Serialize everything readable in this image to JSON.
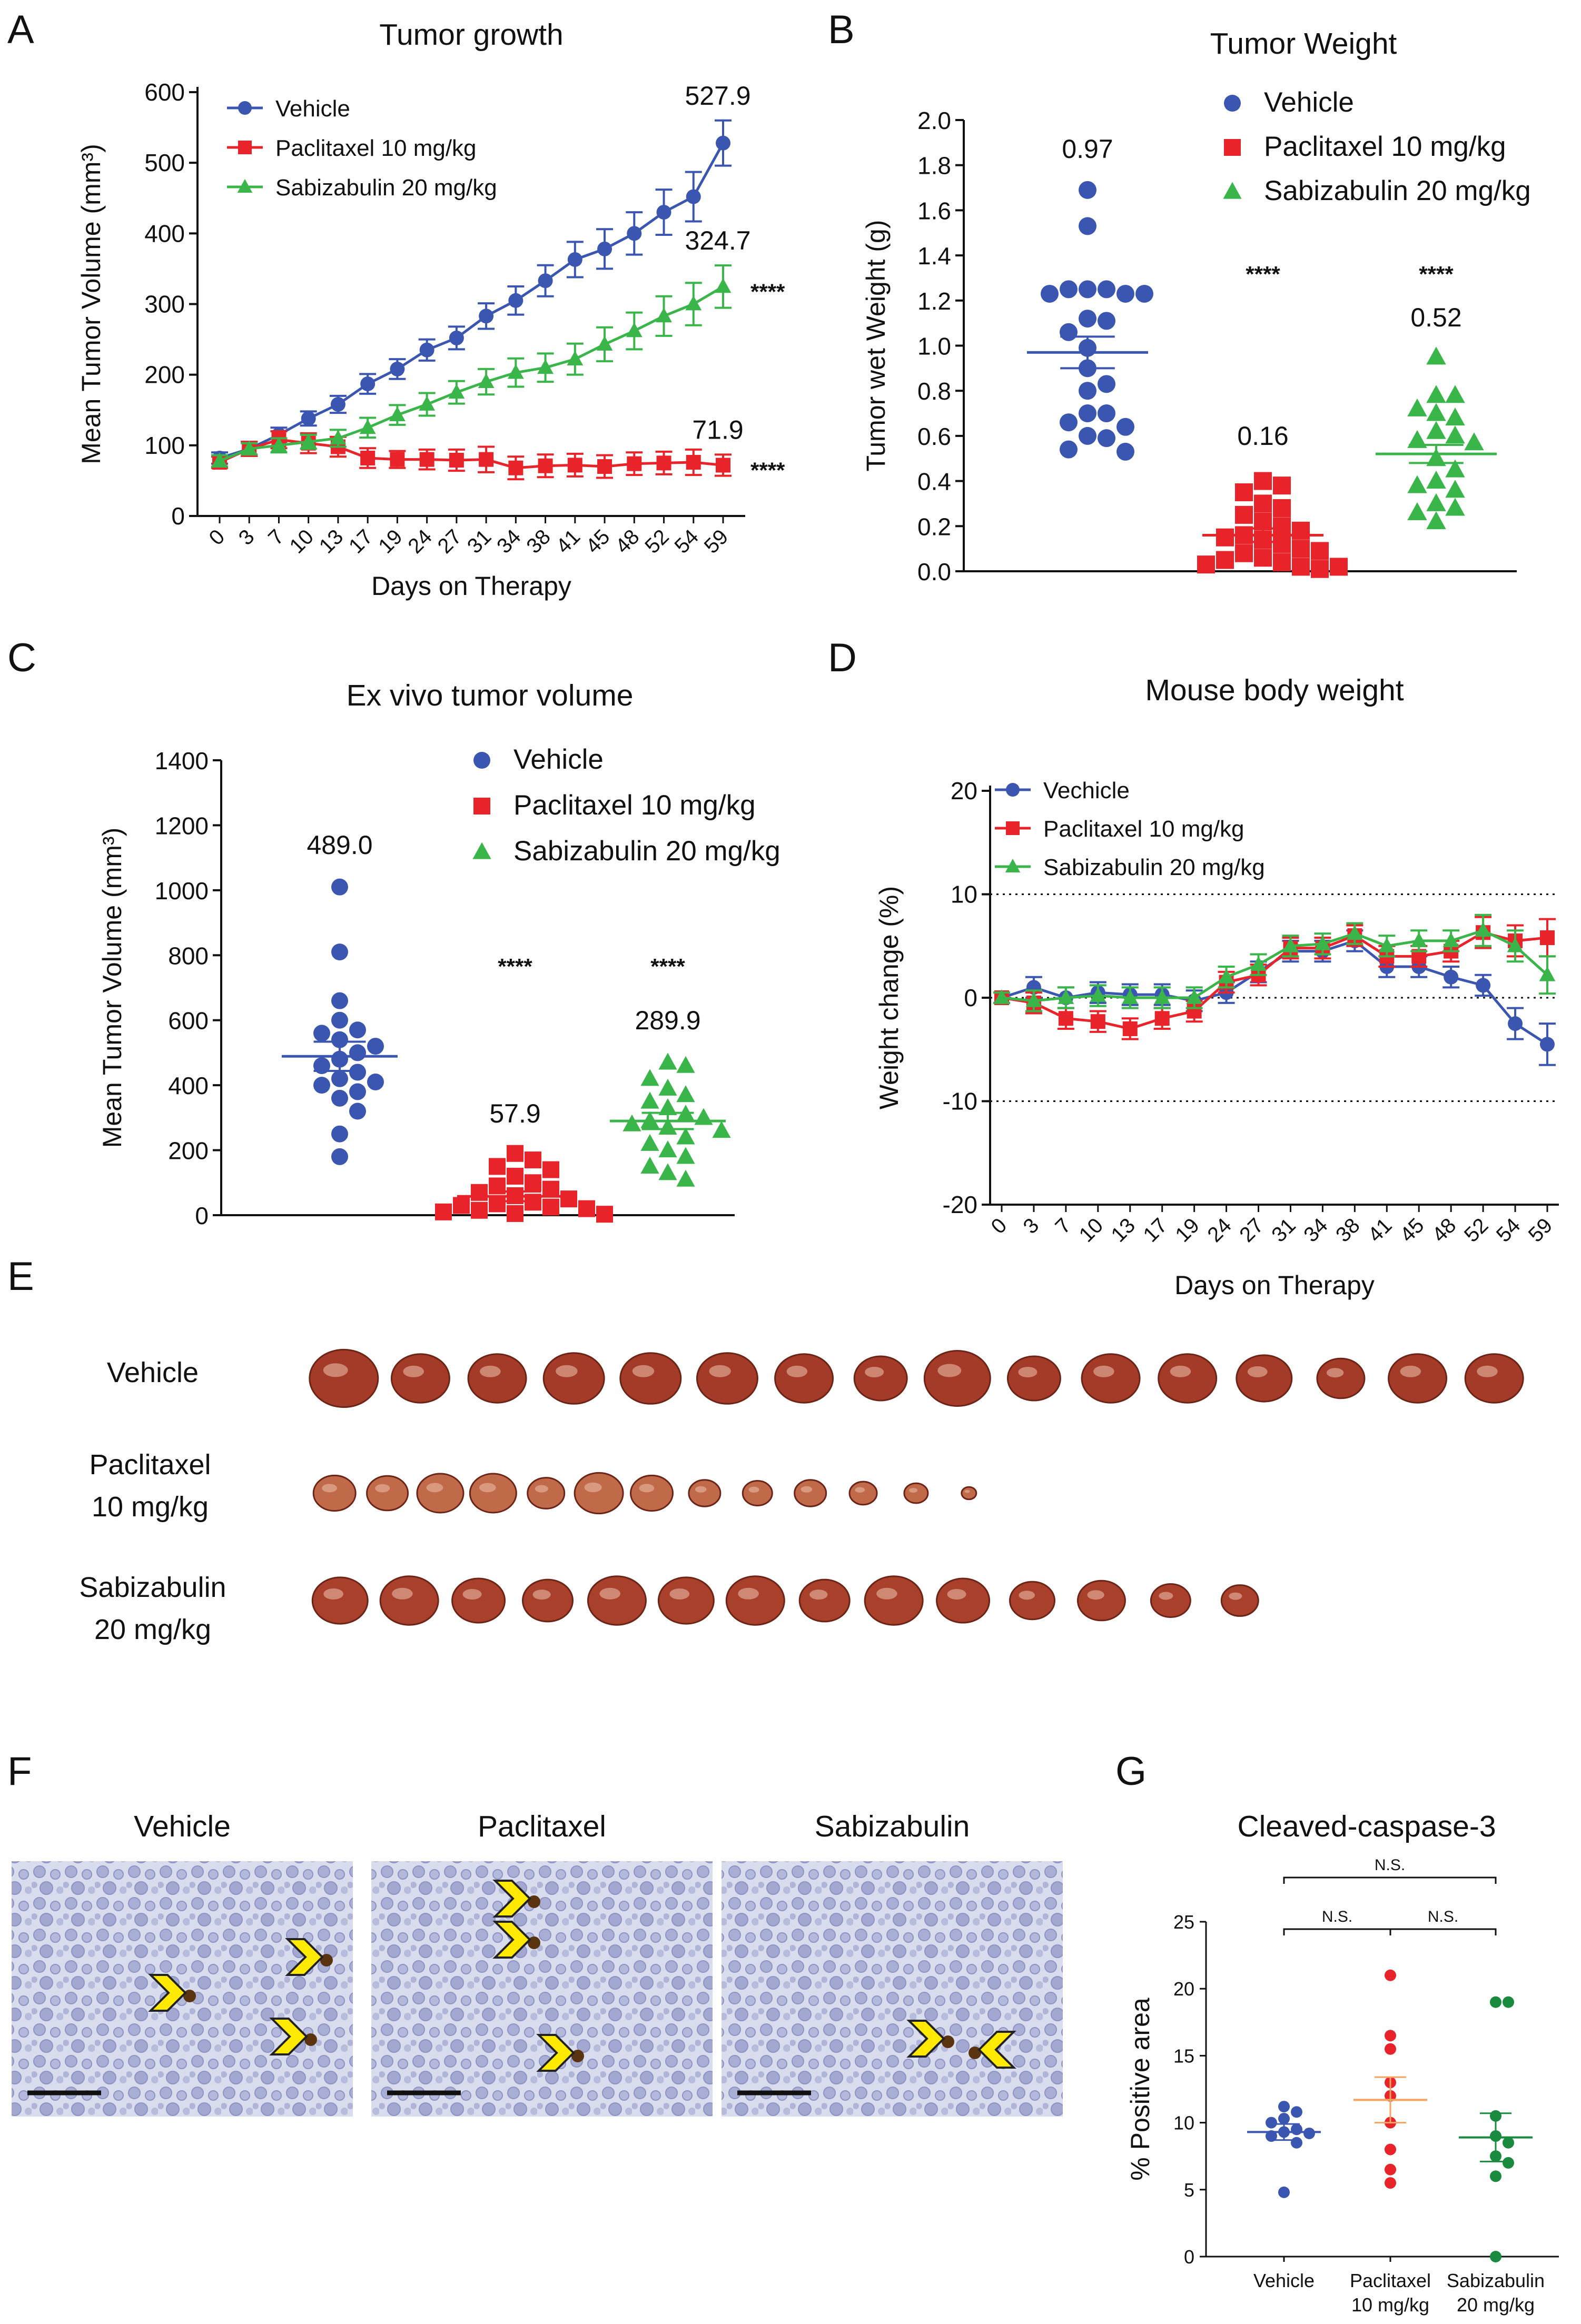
{
  "colors": {
    "vehicle": "#3a56b0",
    "paclitaxel": "#e8242a",
    "sabizabulin": "#3ab54a",
    "g_paclitaxel_mean": "#f4a460",
    "g_sabizabulin": "#1a8a3e"
  },
  "panels": {
    "A": {
      "letter": "A"
    },
    "B": {
      "letter": "B"
    },
    "C": {
      "letter": "C"
    },
    "D": {
      "letter": "D"
    },
    "E": {
      "letter": "E",
      "rows": [
        {
          "label_lines": [
            "Vehicle"
          ],
          "count": 16,
          "color": "#a43a28"
        },
        {
          "label_lines": [
            "Paclitaxel",
            "10 mg/kg"
          ],
          "count": 13,
          "color": "#c06a4a"
        },
        {
          "label_lines": [
            "Sabizabulin",
            "20 mg/kg"
          ],
          "count": 14,
          "color": "#a8402c"
        }
      ]
    },
    "F": {
      "letter": "F",
      "images": [
        {
          "title": "Vehicle",
          "arrows": 3
        },
        {
          "title": "Paclitaxel",
          "arrows": 3
        },
        {
          "title": "Sabizabulin",
          "arrows": 2
        }
      ]
    },
    "G": {
      "letter": "G"
    }
  },
  "chart_data": [
    {
      "id": "A",
      "type": "line",
      "title": "Tumor growth",
      "xlabel": "Days on Therapy",
      "ylabel": "Mean Tumor Volume (mm³)",
      "ylim": [
        0,
        600
      ],
      "yticks": [
        0,
        100,
        200,
        300,
        400,
        500,
        600
      ],
      "categories": [
        "0",
        "3",
        "7",
        "10",
        "13",
        "17",
        "19",
        "24",
        "27",
        "31",
        "34",
        "38",
        "41",
        "45",
        "48",
        "52",
        "54",
        "59"
      ],
      "series": [
        {
          "name": "Vehicle",
          "values": [
            82,
            95,
            115,
            138,
            158,
            187,
            208,
            235,
            252,
            283,
            305,
            333,
            363,
            378,
            400,
            430,
            452,
            527.9
          ],
          "err": [
            8,
            10,
            10,
            10,
            12,
            14,
            14,
            15,
            16,
            18,
            20,
            22,
            25,
            28,
            30,
            32,
            35,
            32
          ],
          "end_label": "527.9",
          "sig": ""
        },
        {
          "name": "Paclitaxel 10 mg/kg",
          "values": [
            76,
            95,
            108,
            103,
            98,
            82,
            80,
            80,
            79,
            80,
            68,
            71,
            72,
            70,
            74,
            75,
            76,
            71.9
          ],
          "err": [
            8,
            10,
            12,
            14,
            14,
            14,
            12,
            14,
            15,
            18,
            16,
            16,
            16,
            16,
            16,
            16,
            18,
            15
          ],
          "end_label": "71.9",
          "sig": "****"
        },
        {
          "name": "Sabizabulin 20 mg/kg",
          "values": [
            78,
            95,
            100,
            105,
            110,
            125,
            143,
            158,
            175,
            190,
            203,
            210,
            222,
            243,
            262,
            283,
            300,
            324.7
          ],
          "err": [
            8,
            8,
            10,
            10,
            12,
            14,
            14,
            16,
            16,
            18,
            20,
            20,
            22,
            24,
            26,
            28,
            30,
            30
          ],
          "end_label": "324.7",
          "sig": "****"
        }
      ]
    },
    {
      "id": "B",
      "type": "scatter",
      "title": "Tumor Weight",
      "ylabel": "Tumor wet Weight (g)",
      "ylim": [
        0,
        2.0
      ],
      "yticks": [
        "0.0",
        "0.2",
        "0.4",
        "0.6",
        "0.8",
        "1.0",
        "1.2",
        "1.4",
        "1.6",
        "1.8",
        "2.0"
      ],
      "groups": [
        {
          "name": "Vehicle",
          "mean": 0.97,
          "sem": 0.07,
          "label": "0.97",
          "sig": "",
          "values": [
            1.69,
            1.53,
            1.25,
            1.25,
            1.25,
            1.23,
            1.23,
            1.23,
            1.11,
            1.12,
            1.06,
            0.99,
            0.9,
            0.83,
            0.8,
            0.7,
            0.7,
            0.66,
            0.64,
            0.59,
            0.6,
            0.53,
            0.54
          ]
        },
        {
          "name": "Paclitaxel 10 mg/kg",
          "mean": 0.16,
          "sem": 0.03,
          "label": "0.16",
          "sig": "****",
          "values": [
            0.4,
            0.38,
            0.35,
            0.3,
            0.28,
            0.25,
            0.22,
            0.2,
            0.18,
            0.16,
            0.15,
            0.14,
            0.12,
            0.1,
            0.09,
            0.08,
            0.06,
            0.05,
            0.04,
            0.03,
            0.02,
            0.02,
            0.01
          ]
        },
        {
          "name": "Sabizabulin 20 mg/kg",
          "mean": 0.52,
          "sem": 0.04,
          "label": "0.52",
          "sig": "****",
          "values": [
            0.95,
            0.78,
            0.78,
            0.72,
            0.7,
            0.68,
            0.62,
            0.6,
            0.58,
            0.57,
            0.5,
            0.45,
            0.4,
            0.38,
            0.36,
            0.3,
            0.28,
            0.26,
            0.22
          ]
        }
      ]
    },
    {
      "id": "C",
      "type": "scatter",
      "title": "Ex vivo tumor volume",
      "ylabel": "Mean Tumor Volume (mm³)",
      "ylim": [
        0,
        1400
      ],
      "yticks": [
        "0",
        "200",
        "400",
        "600",
        "800",
        "1000",
        "1200",
        "1400"
      ],
      "groups": [
        {
          "name": "Vehicle",
          "mean": 489.0,
          "sem": 45,
          "label": "489.0",
          "sig": "",
          "values": [
            1010,
            810,
            660,
            600,
            570,
            540,
            520,
            500,
            480,
            460,
            440,
            420,
            400,
            380,
            360,
            320,
            250,
            180,
            560,
            410
          ]
        },
        {
          "name": "Paclitaxel 10 mg/kg",
          "mean": 57.9,
          "sem": 15,
          "label": "57.9",
          "sig": "****",
          "values": [
            190,
            170,
            150,
            140,
            120,
            100,
            90,
            80,
            70,
            60,
            50,
            40,
            35,
            30,
            25,
            20,
            15,
            10,
            5,
            3
          ]
        },
        {
          "name": "Sabizabulin 20 mg/kg",
          "mean": 289.9,
          "sem": 25,
          "label": "289.9",
          "sig": "****",
          "values": [
            470,
            460,
            420,
            390,
            370,
            350,
            330,
            310,
            300,
            280,
            270,
            260,
            240,
            220,
            200,
            180,
            150,
            130,
            110,
            290
          ]
        }
      ]
    },
    {
      "id": "D",
      "type": "line",
      "title": "Mouse body weight",
      "xlabel": "Days on Therapy",
      "ylabel": "Weight change (%)",
      "ylim": [
        -20,
        20
      ],
      "yticks": [
        "-20",
        "-10",
        "0",
        "10",
        "20"
      ],
      "reference_lines": [
        -10,
        0,
        10
      ],
      "categories": [
        "0",
        "3",
        "7",
        "10",
        "13",
        "17",
        "19",
        "24",
        "27",
        "31",
        "34",
        "38",
        "41",
        "45",
        "48",
        "52",
        "54",
        "59"
      ],
      "series": [
        {
          "name": "Vechicle",
          "values": [
            0,
            1,
            0,
            0.5,
            0.3,
            0.3,
            -0.3,
            0.5,
            2.5,
            4.5,
            4.5,
            5.5,
            3,
            3,
            2,
            1.2,
            -2.5,
            -4.5
          ],
          "err": [
            0.5,
            1,
            1,
            1,
            1,
            1,
            1,
            1,
            1,
            1,
            1,
            1,
            1,
            1,
            1,
            1,
            1.5,
            2
          ]
        },
        {
          "name": "Paclitaxel 10 mg/kg",
          "values": [
            0,
            -0.5,
            -2,
            -2.3,
            -3,
            -2,
            -1.3,
            1.5,
            2.2,
            4.8,
            4.8,
            6,
            4,
            4,
            4.5,
            6.3,
            5.5,
            5.8
          ],
          "err": [
            0.5,
            1,
            1,
            1,
            1,
            1,
            1,
            1,
            1,
            1,
            1,
            1,
            1,
            1,
            1,
            1.5,
            1.5,
            1.8
          ]
        },
        {
          "name": "Sabizabulin 20 mg/kg",
          "values": [
            0,
            -0.3,
            0,
            0.2,
            0,
            0,
            0,
            2,
            3.2,
            5,
            5.2,
            6.2,
            5,
            5.5,
            5.5,
            6.5,
            5,
            2.2
          ],
          "err": [
            0.5,
            1,
            1,
            1,
            1,
            1,
            1,
            1,
            1,
            1,
            1,
            1,
            1,
            1,
            1,
            1.5,
            1.5,
            1.8
          ]
        }
      ]
    },
    {
      "id": "G",
      "type": "scatter",
      "title": "Cleaved-caspase-3",
      "ylabel": "% Positive area",
      "ylim": [
        0,
        25
      ],
      "yticks": [
        "0",
        "5",
        "10",
        "15",
        "20",
        "25"
      ],
      "categories": [
        [
          "Vehicle"
        ],
        [
          "Paclitaxel",
          "10 mg/kg"
        ],
        [
          "Sabizabulin",
          "20 mg/kg"
        ]
      ],
      "significance": [
        {
          "from": 0,
          "to": 2,
          "label": "N.S."
        },
        {
          "from": 0,
          "to": 1,
          "label": "N.S."
        },
        {
          "from": 1,
          "to": 2,
          "label": "N.S."
        }
      ],
      "groups": [
        {
          "name": "Vehicle",
          "mean": 9.3,
          "sem": 0.6,
          "values": [
            11.2,
            10.8,
            10.3,
            10.0,
            9.5,
            9.3,
            9.2,
            9.0,
            8.5,
            4.8
          ]
        },
        {
          "name": "Paclitaxel",
          "mean": 11.7,
          "sem": 1.7,
          "values": [
            21,
            16.5,
            15.5,
            13,
            12,
            10,
            8,
            6.5,
            5.5
          ]
        },
        {
          "name": "Sabizabulin",
          "mean": 8.9,
          "sem": 1.8,
          "values": [
            19,
            19,
            10.5,
            9,
            8.5,
            7.5,
            7,
            6,
            0
          ]
        }
      ]
    }
  ]
}
